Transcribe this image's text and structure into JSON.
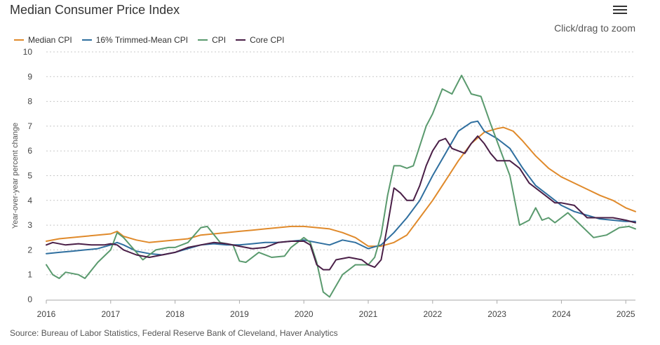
{
  "header": {
    "title": "Median Consumer Price Index",
    "zoom_hint": "Click/drag to zoom"
  },
  "menu": {
    "icon": "hamburger-menu-icon"
  },
  "source": "Source: Bureau of Labor Statistics, Federal Reserve Bank of Cleveland, Haver Analytics",
  "chart_data": {
    "type": "line",
    "title": "Median Consumer Price Index",
    "ylabel": "Year-over-year percent change",
    "xlabel": "",
    "xlim": [
      2016.0,
      2025.15
    ],
    "ylim": [
      0,
      10
    ],
    "x_ticks": [
      "2016",
      "2017",
      "2018",
      "2019",
      "2020",
      "2021",
      "2022",
      "2023",
      "2024",
      "2025"
    ],
    "y_ticks": [
      "0",
      "1",
      "2",
      "3",
      "4",
      "5",
      "6",
      "7",
      "8",
      "9",
      "10"
    ],
    "grid": "horizontal dashed",
    "legend_position": "top-left",
    "series": [
      {
        "name": "Median CPI",
        "color": "#e08a2b",
        "points": [
          [
            2016.0,
            2.35
          ],
          [
            2016.2,
            2.45
          ],
          [
            2016.4,
            2.5
          ],
          [
            2016.6,
            2.55
          ],
          [
            2016.8,
            2.6
          ],
          [
            2017.0,
            2.65
          ],
          [
            2017.1,
            2.75
          ],
          [
            2017.2,
            2.55
          ],
          [
            2017.4,
            2.4
          ],
          [
            2017.6,
            2.3
          ],
          [
            2017.8,
            2.35
          ],
          [
            2018.0,
            2.4
          ],
          [
            2018.2,
            2.45
          ],
          [
            2018.4,
            2.6
          ],
          [
            2018.6,
            2.65
          ],
          [
            2018.8,
            2.7
          ],
          [
            2019.0,
            2.75
          ],
          [
            2019.2,
            2.8
          ],
          [
            2019.4,
            2.85
          ],
          [
            2019.6,
            2.9
          ],
          [
            2019.8,
            2.95
          ],
          [
            2020.0,
            2.95
          ],
          [
            2020.2,
            2.9
          ],
          [
            2020.4,
            2.85
          ],
          [
            2020.6,
            2.7
          ],
          [
            2020.8,
            2.5
          ],
          [
            2021.0,
            2.15
          ],
          [
            2021.2,
            2.15
          ],
          [
            2021.4,
            2.3
          ],
          [
            2021.6,
            2.6
          ],
          [
            2021.8,
            3.3
          ],
          [
            2022.0,
            4.0
          ],
          [
            2022.2,
            4.8
          ],
          [
            2022.4,
            5.6
          ],
          [
            2022.6,
            6.3
          ],
          [
            2022.8,
            6.75
          ],
          [
            2023.0,
            6.9
          ],
          [
            2023.1,
            6.95
          ],
          [
            2023.25,
            6.8
          ],
          [
            2023.4,
            6.4
          ],
          [
            2023.6,
            5.8
          ],
          [
            2023.8,
            5.3
          ],
          [
            2024.0,
            4.95
          ],
          [
            2024.2,
            4.7
          ],
          [
            2024.4,
            4.45
          ],
          [
            2024.6,
            4.2
          ],
          [
            2024.8,
            4.0
          ],
          [
            2025.0,
            3.7
          ],
          [
            2025.15,
            3.55
          ]
        ]
      },
      {
        "name": "16% Trimmed-Mean CPI",
        "color": "#2f6f9f",
        "points": [
          [
            2016.0,
            1.85
          ],
          [
            2016.2,
            1.9
          ],
          [
            2016.4,
            1.95
          ],
          [
            2016.6,
            2.0
          ],
          [
            2016.8,
            2.05
          ],
          [
            2017.0,
            2.2
          ],
          [
            2017.1,
            2.3
          ],
          [
            2017.2,
            2.2
          ],
          [
            2017.4,
            1.95
          ],
          [
            2017.6,
            1.85
          ],
          [
            2017.8,
            1.8
          ],
          [
            2018.0,
            1.9
          ],
          [
            2018.2,
            2.05
          ],
          [
            2018.4,
            2.2
          ],
          [
            2018.6,
            2.25
          ],
          [
            2018.8,
            2.2
          ],
          [
            2019.0,
            2.2
          ],
          [
            2019.2,
            2.25
          ],
          [
            2019.4,
            2.3
          ],
          [
            2019.6,
            2.3
          ],
          [
            2019.8,
            2.35
          ],
          [
            2020.0,
            2.4
          ],
          [
            2020.2,
            2.3
          ],
          [
            2020.4,
            2.2
          ],
          [
            2020.6,
            2.4
          ],
          [
            2020.8,
            2.3
          ],
          [
            2021.0,
            2.05
          ],
          [
            2021.2,
            2.2
          ],
          [
            2021.4,
            2.7
          ],
          [
            2021.6,
            3.3
          ],
          [
            2021.8,
            4.0
          ],
          [
            2022.0,
            5.0
          ],
          [
            2022.2,
            5.9
          ],
          [
            2022.4,
            6.8
          ],
          [
            2022.6,
            7.15
          ],
          [
            2022.7,
            7.2
          ],
          [
            2022.8,
            6.8
          ],
          [
            2023.0,
            6.5
          ],
          [
            2023.2,
            6.1
          ],
          [
            2023.4,
            5.3
          ],
          [
            2023.6,
            4.6
          ],
          [
            2023.8,
            4.2
          ],
          [
            2024.0,
            3.8
          ],
          [
            2024.2,
            3.55
          ],
          [
            2024.4,
            3.4
          ],
          [
            2024.6,
            3.25
          ],
          [
            2024.8,
            3.2
          ],
          [
            2025.0,
            3.15
          ],
          [
            2025.15,
            3.15
          ]
        ]
      },
      {
        "name": "CPI",
        "color": "#5a9a6e",
        "points": [
          [
            2016.0,
            1.4
          ],
          [
            2016.1,
            1.0
          ],
          [
            2016.2,
            0.85
          ],
          [
            2016.3,
            1.1
          ],
          [
            2016.5,
            1.0
          ],
          [
            2016.6,
            0.85
          ],
          [
            2016.8,
            1.5
          ],
          [
            2017.0,
            2.0
          ],
          [
            2017.1,
            2.7
          ],
          [
            2017.2,
            2.5
          ],
          [
            2017.4,
            1.9
          ],
          [
            2017.5,
            1.6
          ],
          [
            2017.7,
            2.0
          ],
          [
            2017.9,
            2.1
          ],
          [
            2018.0,
            2.1
          ],
          [
            2018.2,
            2.3
          ],
          [
            2018.4,
            2.9
          ],
          [
            2018.5,
            2.95
          ],
          [
            2018.7,
            2.3
          ],
          [
            2018.9,
            2.2
          ],
          [
            2019.0,
            1.55
          ],
          [
            2019.1,
            1.5
          ],
          [
            2019.3,
            1.9
          ],
          [
            2019.5,
            1.7
          ],
          [
            2019.7,
            1.75
          ],
          [
            2019.8,
            2.1
          ],
          [
            2020.0,
            2.5
          ],
          [
            2020.1,
            2.3
          ],
          [
            2020.2,
            1.5
          ],
          [
            2020.3,
            0.3
          ],
          [
            2020.4,
            0.1
          ],
          [
            2020.6,
            1.0
          ],
          [
            2020.8,
            1.4
          ],
          [
            2021.0,
            1.4
          ],
          [
            2021.1,
            1.7
          ],
          [
            2021.2,
            2.6
          ],
          [
            2021.3,
            4.2
          ],
          [
            2021.4,
            5.4
          ],
          [
            2021.5,
            5.4
          ],
          [
            2021.6,
            5.3
          ],
          [
            2021.7,
            5.4
          ],
          [
            2021.8,
            6.2
          ],
          [
            2021.9,
            7.0
          ],
          [
            2022.0,
            7.5
          ],
          [
            2022.15,
            8.5
          ],
          [
            2022.3,
            8.3
          ],
          [
            2022.45,
            9.05
          ],
          [
            2022.6,
            8.3
          ],
          [
            2022.75,
            8.2
          ],
          [
            2022.9,
            7.1
          ],
          [
            2023.0,
            6.4
          ],
          [
            2023.2,
            5.0
          ],
          [
            2023.35,
            3.0
          ],
          [
            2023.5,
            3.2
          ],
          [
            2023.6,
            3.7
          ],
          [
            2023.7,
            3.2
          ],
          [
            2023.8,
            3.3
          ],
          [
            2023.9,
            3.1
          ],
          [
            2024.0,
            3.3
          ],
          [
            2024.1,
            3.5
          ],
          [
            2024.3,
            3.0
          ],
          [
            2024.5,
            2.5
          ],
          [
            2024.7,
            2.6
          ],
          [
            2024.9,
            2.9
          ],
          [
            2025.05,
            2.95
          ],
          [
            2025.15,
            2.85
          ]
        ]
      },
      {
        "name": "Core CPI",
        "color": "#4a1f47",
        "points": [
          [
            2016.0,
            2.2
          ],
          [
            2016.1,
            2.3
          ],
          [
            2016.3,
            2.2
          ],
          [
            2016.5,
            2.25
          ],
          [
            2016.7,
            2.2
          ],
          [
            2016.9,
            2.2
          ],
          [
            2017.0,
            2.25
          ],
          [
            2017.1,
            2.2
          ],
          [
            2017.2,
            2.0
          ],
          [
            2017.4,
            1.8
          ],
          [
            2017.6,
            1.7
          ],
          [
            2017.8,
            1.8
          ],
          [
            2018.0,
            1.9
          ],
          [
            2018.2,
            2.1
          ],
          [
            2018.4,
            2.2
          ],
          [
            2018.6,
            2.3
          ],
          [
            2018.8,
            2.25
          ],
          [
            2019.0,
            2.15
          ],
          [
            2019.2,
            2.05
          ],
          [
            2019.4,
            2.1
          ],
          [
            2019.6,
            2.3
          ],
          [
            2019.8,
            2.35
          ],
          [
            2020.0,
            2.35
          ],
          [
            2020.1,
            2.2
          ],
          [
            2020.2,
            1.4
          ],
          [
            2020.3,
            1.2
          ],
          [
            2020.4,
            1.2
          ],
          [
            2020.5,
            1.6
          ],
          [
            2020.7,
            1.7
          ],
          [
            2020.9,
            1.6
          ],
          [
            2021.0,
            1.4
          ],
          [
            2021.1,
            1.3
          ],
          [
            2021.2,
            1.6
          ],
          [
            2021.3,
            3.0
          ],
          [
            2021.4,
            4.5
          ],
          [
            2021.5,
            4.3
          ],
          [
            2021.6,
            4.0
          ],
          [
            2021.7,
            4.0
          ],
          [
            2021.8,
            4.6
          ],
          [
            2021.9,
            5.4
          ],
          [
            2022.0,
            6.0
          ],
          [
            2022.1,
            6.4
          ],
          [
            2022.2,
            6.5
          ],
          [
            2022.3,
            6.1
          ],
          [
            2022.5,
            5.9
          ],
          [
            2022.6,
            6.3
          ],
          [
            2022.7,
            6.6
          ],
          [
            2022.8,
            6.3
          ],
          [
            2022.9,
            5.9
          ],
          [
            2023.0,
            5.6
          ],
          [
            2023.2,
            5.6
          ],
          [
            2023.35,
            5.3
          ],
          [
            2023.5,
            4.7
          ],
          [
            2023.7,
            4.3
          ],
          [
            2023.9,
            3.9
          ],
          [
            2024.0,
            3.9
          ],
          [
            2024.2,
            3.8
          ],
          [
            2024.4,
            3.3
          ],
          [
            2024.6,
            3.3
          ],
          [
            2024.8,
            3.3
          ],
          [
            2025.0,
            3.2
          ],
          [
            2025.15,
            3.1
          ]
        ]
      }
    ]
  }
}
